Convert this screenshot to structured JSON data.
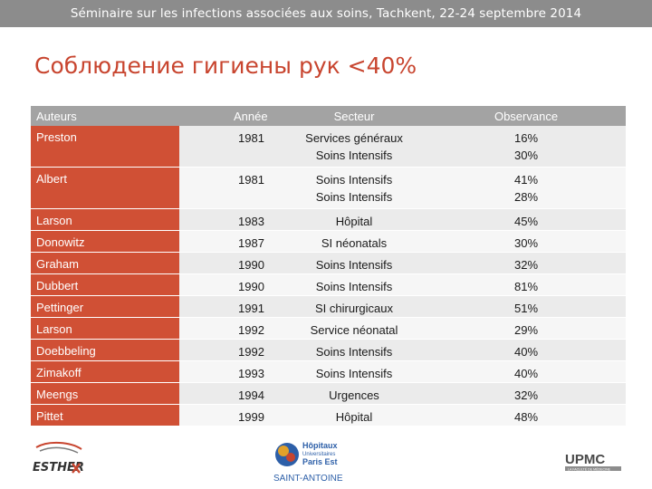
{
  "header": {
    "banner": "Séminaire sur les infections associées aux soins, Tachkent, 22-24 septembre 2014"
  },
  "slide": {
    "title": "Соблюдение гигиены рук <40%"
  },
  "table": {
    "columns": [
      "Auteurs",
      "Année",
      "Secteur",
      "Observance"
    ],
    "rows": [
      {
        "author": "Preston",
        "year": "1981",
        "sector": [
          "Services généraux",
          "Soins Intensifs"
        ],
        "observance": [
          "16%",
          "30%"
        ]
      },
      {
        "author": "Albert",
        "year": "1981",
        "sector": [
          "Soins Intensifs",
          "Soins Intensifs"
        ],
        "observance": [
          "41%",
          "28%"
        ]
      },
      {
        "author": "Larson",
        "year": "1983",
        "sector": [
          "Hôpital"
        ],
        "observance": [
          "45%"
        ]
      },
      {
        "author": "Donowitz",
        "year": "1987",
        "sector": [
          "SI  néonatals"
        ],
        "observance": [
          "30%"
        ]
      },
      {
        "author": "Graham",
        "year": "1990",
        "sector": [
          "Soins Intensifs"
        ],
        "observance": [
          "32%"
        ]
      },
      {
        "author": "Dubbert",
        "year": "1990",
        "sector": [
          "Soins Intensifs"
        ],
        "observance": [
          "81%"
        ]
      },
      {
        "author": "Pettinger",
        "year": "1991",
        "sector": [
          "SI  chirurgicaux"
        ],
        "observance": [
          "51%"
        ]
      },
      {
        "author": "Larson",
        "year": "1992",
        "sector": [
          "Service néonatal"
        ],
        "observance": [
          "29%"
        ]
      },
      {
        "author": "Doebbeling",
        "year": "1992",
        "sector": [
          "Soins Intensifs"
        ],
        "observance": [
          "40%"
        ]
      },
      {
        "author": "Zimakoff",
        "year": "1993",
        "sector": [
          "Soins Intensifs"
        ],
        "observance": [
          "40%"
        ]
      },
      {
        "author": "Meengs",
        "year": "1994",
        "sector": [
          "Urgences"
        ],
        "observance": [
          "32%"
        ]
      },
      {
        "author": "Pittet",
        "year": "1999",
        "sector": [
          "Hôpital"
        ],
        "observance": [
          "48%"
        ]
      }
    ]
  },
  "logos": {
    "left": "ESTHER",
    "center": [
      "Hôpitaux",
      "Universitaires",
      "Paris Est",
      "SAINT-ANTOINE"
    ],
    "right": [
      "UPMC",
      "LA FACULTÉ DE MÉDECINE"
    ]
  },
  "colors": {
    "accent": "#c8452f",
    "author_cell": "#d05035",
    "header_row": "#a3a3a3",
    "banner": "#8c8c8c"
  }
}
